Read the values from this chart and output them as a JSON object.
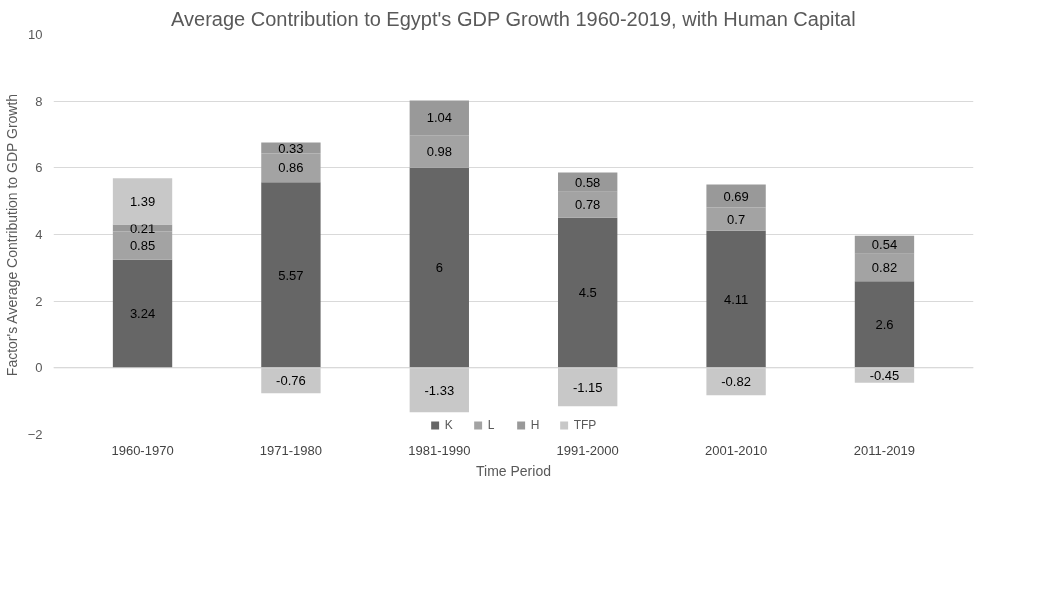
{
  "chart_data": {
    "type": "bar",
    "title": "Average Contribution to Egypt's GDP Growth 1960-2019, with Human Capital",
    "xlabel": "Time Period",
    "ylabel": "Factor's Average Contribution to GDP Growth",
    "categories": [
      "1960-1970",
      "1971-1980",
      "1981-1990",
      "1991-2000",
      "2001-2010",
      "2011-2019"
    ],
    "stacked": true,
    "series": [
      {
        "name": "K",
        "color": "#666666",
        "values": [
          3.24,
          5.57,
          6,
          4.5,
          4.11,
          2.6
        ]
      },
      {
        "name": "L",
        "color": "#a3a3a3",
        "values": [
          0.85,
          0.86,
          0.98,
          0.78,
          0.7,
          0.82
        ]
      },
      {
        "name": "H",
        "color": "#999999",
        "values": [
          0.21,
          0.33,
          1.04,
          0.58,
          0.69,
          0.54
        ]
      },
      {
        "name": "TFP",
        "color": "#c8c8c8",
        "values": [
          1.39,
          -0.76,
          -1.33,
          -1.15,
          -0.82,
          -0.45
        ]
      }
    ],
    "ylim": [
      -2,
      10
    ],
    "yticks": [
      -2,
      0,
      2,
      4,
      6,
      8,
      10
    ],
    "grid": "y",
    "legend": "bottom",
    "data_labels": true
  }
}
